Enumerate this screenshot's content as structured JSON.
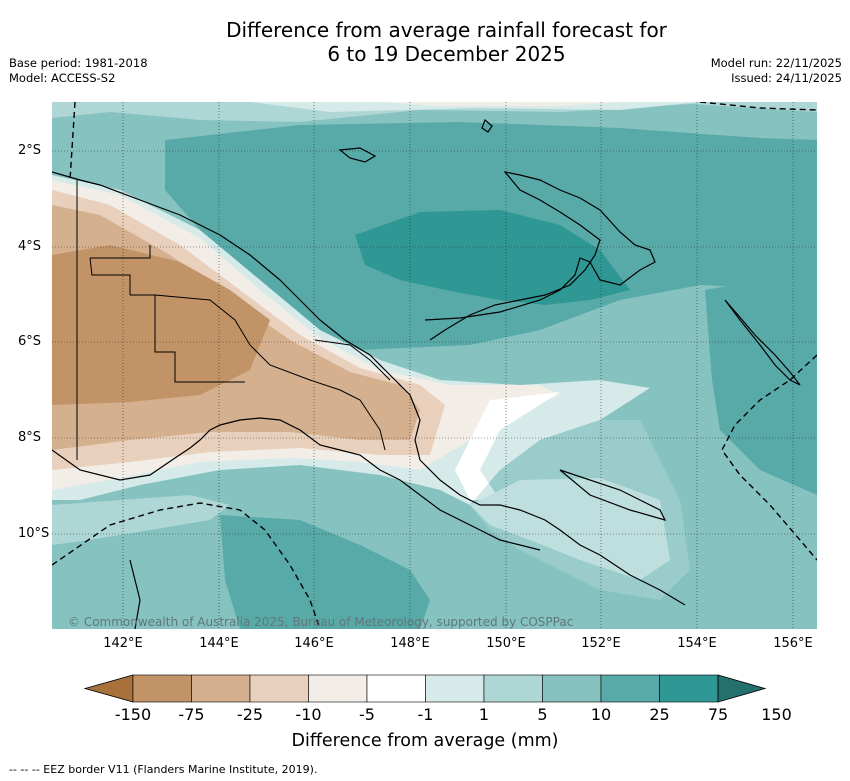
{
  "title_line1": "Difference from average rainfall forecast for",
  "title_line2": "6 to 19 December 2025",
  "base_period": "Base period: 1981-2018",
  "model": "Model: ACCESS-S2",
  "model_run": "Model run: 22/11/2025",
  "issued": "Issued: 24/11/2025",
  "copyright": "© Commonwealth of Australia 2025, Bureau of Meteorology, supported by COSPPac",
  "x_ticks": [
    "142°E",
    "144°E",
    "146°E",
    "148°E",
    "150°E",
    "152°E",
    "154°E",
    "156°E"
  ],
  "y_ticks": [
    "2°S",
    "4°S",
    "6°S",
    "8°S",
    "10°S"
  ],
  "colorbar": {
    "title": "Difference from average (mm)",
    "labels": [
      "-150",
      "-75",
      "-25",
      "-10",
      "-5",
      "-1",
      "1",
      "5",
      "10",
      "25",
      "75",
      "150"
    ],
    "colors": [
      "#a8703a",
      "#c19366",
      "#d4b08e",
      "#e8d0bc",
      "#f2ede7",
      "#ffffff",
      "#d6eaea",
      "#add6d5",
      "#85c2c0",
      "#58aaa8",
      "#2f9894",
      "#23706c"
    ]
  },
  "eez_legend": "--  --  -- EEZ border V11 (Flanders Marine Institute, 2019)."
}
